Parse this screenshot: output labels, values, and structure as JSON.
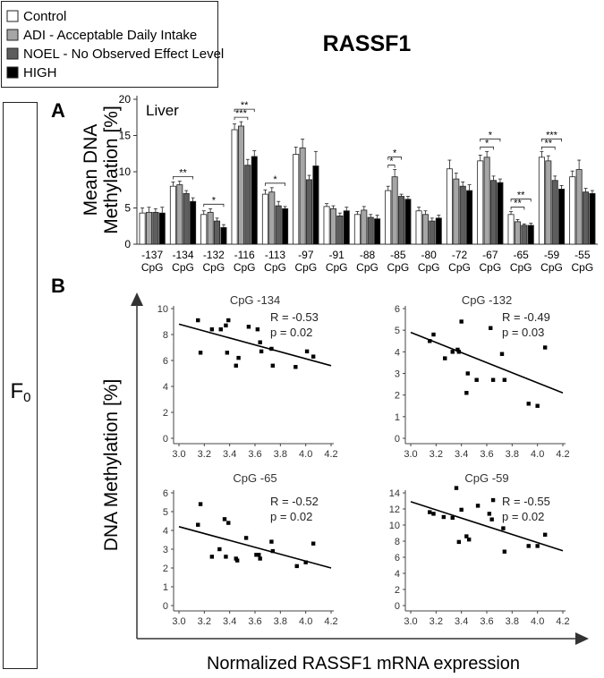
{
  "title": "RASSF1",
  "generation_label": "F",
  "generation_subscript": "0",
  "legend": [
    {
      "label": "Control",
      "color": "#ffffff"
    },
    {
      "label": "ADI - Acceptable Daily Intake",
      "color": "#a6a6a6"
    },
    {
      "label": "NOEL - No Observed Effect Level",
      "color": "#5e5e5e"
    },
    {
      "label": "HIGH",
      "color": "#000000"
    }
  ],
  "panel_a": {
    "letter": "A",
    "tissue": "Liver",
    "ylabel_line1": "Mean DNA",
    "ylabel_line2": "Methylation [%]"
  },
  "panel_b": {
    "letter": "B",
    "ylabel": "DNA Methylation [%]",
    "xlabel": "Normalized RASSF1 mRNA expression"
  },
  "chart_data": [
    {
      "type": "bar",
      "title": "Liver",
      "ylabel": "Mean DNA Methylation [%]",
      "ylim": [
        0,
        20
      ],
      "yticks": [
        0,
        5,
        10,
        15,
        20
      ],
      "categories": [
        "-137",
        "-134",
        "-132",
        "-116",
        "-113",
        "-97",
        "-91",
        "-88",
        "-85",
        "-80",
        "-72",
        "-67",
        "-65",
        "-59",
        "-55"
      ],
      "category_suffix": "CpG",
      "series": [
        {
          "name": "Control",
          "values": [
            4.3,
            8.0,
            4.1,
            15.8,
            6.9,
            12.4,
            5.2,
            4.1,
            7.4,
            4.6,
            10.4,
            11.5,
            4.1,
            12.0,
            9.3
          ],
          "errors": [
            0.7,
            0.6,
            0.5,
            0.8,
            0.6,
            1.0,
            0.4,
            0.4,
            0.6,
            0.5,
            1.2,
            0.8,
            0.4,
            0.8,
            0.8
          ]
        },
        {
          "name": "ADI - Acceptable Daily Intake",
          "values": [
            4.4,
            8.2,
            4.4,
            16.3,
            7.2,
            13.3,
            4.9,
            4.7,
            9.3,
            4.1,
            9.0,
            12.0,
            3.1,
            11.5,
            10.3
          ],
          "errors": [
            0.7,
            0.5,
            0.5,
            0.6,
            0.6,
            1.2,
            0.4,
            0.5,
            1.0,
            0.5,
            0.8,
            0.8,
            0.3,
            0.7,
            1.3
          ]
        },
        {
          "name": "NOEL - No Observed Effect Level",
          "values": [
            4.4,
            7.0,
            3.2,
            10.9,
            5.3,
            8.9,
            3.9,
            3.7,
            6.6,
            3.2,
            8.0,
            8.8,
            2.6,
            8.8,
            7.2
          ],
          "errors": [
            0.5,
            0.4,
            0.4,
            0.8,
            0.6,
            0.6,
            0.4,
            0.4,
            0.3,
            0.4,
            0.6,
            0.6,
            0.2,
            0.6,
            0.5
          ]
        },
        {
          "name": "HIGH",
          "values": [
            4.3,
            5.9,
            2.3,
            12.1,
            4.9,
            10.8,
            4.6,
            3.5,
            6.2,
            3.6,
            7.4,
            8.5,
            2.6,
            7.6,
            7.0
          ],
          "errors": [
            0.8,
            0.5,
            0.4,
            0.8,
            0.3,
            2.0,
            0.5,
            0.5,
            0.4,
            0.4,
            0.8,
            0.5,
            0.3,
            0.5,
            0.4
          ]
        }
      ],
      "significance": [
        {
          "category": "-134",
          "from": "Control",
          "to": "HIGH",
          "label": "**"
        },
        {
          "category": "-132",
          "from": "Control",
          "to": "HIGH",
          "label": "*"
        },
        {
          "category": "-116",
          "from": "Control",
          "to": "NOEL - No Observed Effect Level",
          "label": "***"
        },
        {
          "category": "-116",
          "from": "Control",
          "to": "HIGH",
          "label": "**"
        },
        {
          "category": "-113",
          "from": "Control",
          "to": "HIGH",
          "label": "*"
        },
        {
          "category": "-85",
          "from": "Control",
          "to": "ADI - Acceptable Daily Intake",
          "label": "*"
        },
        {
          "category": "-85",
          "from": "Control",
          "to": "NOEL - No Observed Effect Level",
          "label": "*"
        },
        {
          "category": "-67",
          "from": "Control",
          "to": "NOEL - No Observed Effect Level",
          "label": "*"
        },
        {
          "category": "-67",
          "from": "Control",
          "to": "HIGH",
          "label": "*"
        },
        {
          "category": "-65",
          "from": "Control",
          "to": "NOEL - No Observed Effect Level",
          "label": "**"
        },
        {
          "category": "-65",
          "from": "Control",
          "to": "HIGH",
          "label": "**"
        },
        {
          "category": "-59",
          "from": "Control",
          "to": "NOEL - No Observed Effect Level",
          "label": "**"
        },
        {
          "category": "-59",
          "from": "Control",
          "to": "HIGH",
          "label": "***"
        }
      ]
    },
    {
      "type": "scatter",
      "title": "CpG -134",
      "stats": [
        "R = -0.53",
        "p = 0.02"
      ],
      "xlim": [
        3.0,
        4.2
      ],
      "xticks": [
        "3.0",
        "3.2",
        "3.4",
        "3.6",
        "3.8",
        "4.0",
        "4.2"
      ],
      "ylim": [
        0,
        10
      ],
      "yticks": [
        0,
        2,
        4,
        6,
        8,
        10
      ],
      "x": [
        3.15,
        3.17,
        3.26,
        3.33,
        3.37,
        3.38,
        3.39,
        3.45,
        3.47,
        3.55,
        3.62,
        3.64,
        3.65,
        3.73,
        3.74,
        3.92,
        4.01,
        4.06
      ],
      "y": [
        9.1,
        6.6,
        8.4,
        8.4,
        8.7,
        6.6,
        9.1,
        5.6,
        6.2,
        8.6,
        8.4,
        7.4,
        6.7,
        6.9,
        5.6,
        5.5,
        6.7,
        6.3
      ],
      "fit": {
        "x1": 3.0,
        "y1": 8.8,
        "x2": 4.2,
        "y2": 5.6
      }
    },
    {
      "type": "scatter",
      "title": "CpG -132",
      "stats": [
        "R = -0.49",
        "p = 0.03"
      ],
      "xlim": [
        3.0,
        4.2
      ],
      "xticks": [
        "3.0",
        "3.2",
        "3.4",
        "3.6",
        "3.8",
        "4.0",
        "4.2"
      ],
      "ylim": [
        0,
        6
      ],
      "yticks": [
        0,
        1,
        2,
        3,
        4,
        5,
        6
      ],
      "x": [
        3.15,
        3.18,
        3.27,
        3.33,
        3.37,
        3.38,
        3.4,
        3.44,
        3.45,
        3.52,
        3.63,
        3.65,
        3.72,
        3.74,
        3.93,
        4.0,
        4.06
      ],
      "y": [
        4.5,
        4.8,
        3.7,
        4.0,
        4.1,
        4.0,
        5.4,
        2.1,
        3.0,
        2.7,
        5.1,
        2.7,
        3.9,
        2.7,
        1.6,
        1.5,
        4.2
      ],
      "fit": {
        "x1": 3.0,
        "y1": 4.9,
        "x2": 4.2,
        "y2": 2.1
      }
    },
    {
      "type": "scatter",
      "title": "CpG -65",
      "stats": [
        "R = -0.52",
        "p = 0.02"
      ],
      "xlim": [
        3.0,
        4.2
      ],
      "xticks": [
        "3.0",
        "3.2",
        "3.4",
        "3.6",
        "3.8",
        "4.0",
        "4.2"
      ],
      "ylim": [
        0,
        6
      ],
      "yticks": [
        0,
        1,
        2,
        3,
        4,
        5,
        6
      ],
      "x": [
        3.15,
        3.17,
        3.26,
        3.32,
        3.36,
        3.37,
        3.39,
        3.45,
        3.46,
        3.53,
        3.61,
        3.63,
        3.64,
        3.73,
        3.74,
        3.93,
        4.0,
        4.06
      ],
      "y": [
        4.3,
        5.4,
        2.6,
        3.0,
        4.6,
        2.6,
        4.4,
        2.5,
        2.4,
        3.6,
        2.7,
        2.7,
        2.5,
        3.4,
        2.9,
        2.1,
        2.3,
        3.3
      ],
      "fit": {
        "x1": 3.0,
        "y1": 4.2,
        "x2": 4.2,
        "y2": 2.0
      }
    },
    {
      "type": "scatter",
      "title": "CpG -59",
      "stats": [
        "R = -0.55",
        "p = 0.02"
      ],
      "xlim": [
        3.0,
        4.2
      ],
      "xticks": [
        "3.0",
        "3.2",
        "3.4",
        "3.6",
        "3.8",
        "4.0",
        "4.2"
      ],
      "ylim": [
        0,
        14
      ],
      "yticks": [
        0,
        2,
        4,
        6,
        8,
        10,
        12,
        14
      ],
      "x": [
        3.15,
        3.18,
        3.26,
        3.33,
        3.36,
        3.38,
        3.4,
        3.44,
        3.46,
        3.53,
        3.62,
        3.64,
        3.65,
        3.73,
        3.74,
        3.93,
        4.0,
        4.06
      ],
      "y": [
        11.6,
        11.4,
        11.0,
        10.9,
        14.6,
        7.9,
        11.9,
        8.6,
        8.2,
        12.4,
        11.4,
        10.7,
        13.1,
        9.6,
        6.7,
        7.4,
        7.4,
        8.8
      ],
      "fit": {
        "x1": 3.0,
        "y1": 12.9,
        "x2": 4.2,
        "y2": 6.8
      }
    }
  ]
}
